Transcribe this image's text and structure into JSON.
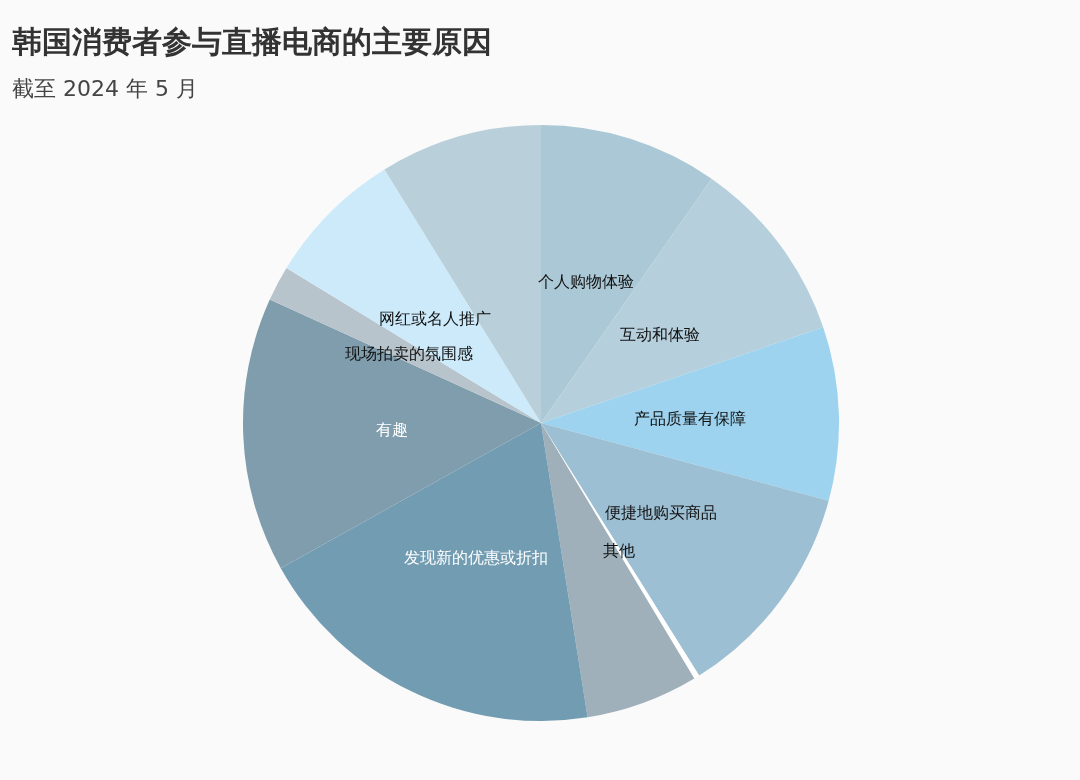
{
  "chart_data": {
    "type": "pie",
    "title": "韩国消费者参与直播电商的主要原因",
    "subtitle": "截至 2024 年 5 月",
    "categories": [
      "个人购物体验",
      "互动和体验",
      "产品质量有保障",
      "便捷地购买商品",
      "其他",
      null,
      "发现新的优惠或折扣",
      "有趣",
      "现场拍卖的氛围感",
      "网红或名人推广",
      null
    ],
    "values": [
      9.7,
      10.1,
      9.4,
      11.9,
      0.3,
      6.1,
      19.4,
      14.9,
      1.9,
      7.5,
      8.8
    ],
    "colors": [
      "#abc8d6",
      "#b6cfdc",
      "#9dd3ef",
      "#9dbfd3",
      "#ffffff",
      "#9fb0ba",
      "#729cb2",
      "#7f9dad",
      "#b8c4cc",
      "#cdeafb",
      "#b9d0da"
    ]
  }
}
